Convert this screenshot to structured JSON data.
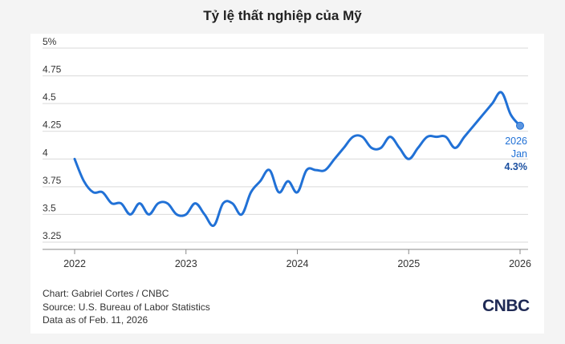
{
  "chart_data": {
    "type": "line",
    "title": "Tỷ lệ thất nghiệp của Mỹ",
    "xlabel": "",
    "ylabel": "",
    "xlim": [
      2022,
      2026
    ],
    "ylim": [
      3.25,
      5
    ],
    "x_ticks": [
      "2022",
      "2023",
      "2024",
      "2025",
      "2026"
    ],
    "y_ticks": [
      "3.25",
      "3.5",
      "3.75",
      "4",
      "4.25",
      "4.5",
      "4.75",
      "5%"
    ],
    "grid": true,
    "series": [
      {
        "color": "#2171d6",
        "dates": [
          "2022-01",
          "2022-02",
          "2022-03",
          "2022-04",
          "2022-05",
          "2022-06",
          "2022-07",
          "2022-08",
          "2022-09",
          "2022-10",
          "2022-11",
          "2022-12",
          "2023-01",
          "2023-02",
          "2023-03",
          "2023-04",
          "2023-05",
          "2023-06",
          "2023-07",
          "2023-08",
          "2023-09",
          "2023-10",
          "2023-11",
          "2023-12",
          "2024-01",
          "2024-02",
          "2024-03",
          "2024-04",
          "2024-05",
          "2024-06",
          "2024-07",
          "2024-08",
          "2024-09",
          "2024-10",
          "2024-11",
          "2024-12",
          "2025-01",
          "2025-02",
          "2025-03",
          "2025-04",
          "2025-05",
          "2025-06",
          "2025-07",
          "2025-08",
          "2025-09",
          "2025-10",
          "2025-11",
          "2025-12",
          "2026-01"
        ],
        "values": [
          4.0,
          3.8,
          3.7,
          3.7,
          3.6,
          3.6,
          3.5,
          3.6,
          3.5,
          3.6,
          3.6,
          3.5,
          3.5,
          3.6,
          3.5,
          3.4,
          3.6,
          3.6,
          3.5,
          3.7,
          3.8,
          3.9,
          3.7,
          3.8,
          3.7,
          3.9,
          3.9,
          3.9,
          4.0,
          4.1,
          4.2,
          4.2,
          4.1,
          4.1,
          4.2,
          4.1,
          4.0,
          4.1,
          4.2,
          4.2,
          4.2,
          4.1,
          4.2,
          4.3,
          4.4,
          4.5,
          4.6,
          4.4,
          4.3
        ]
      }
    ],
    "annotation": {
      "year": "2026",
      "month": "Jan",
      "value": "4.3%"
    }
  },
  "footer": {
    "credit": "Chart: Gabriel Cortes / CNBC",
    "source": "Source: U.S. Bureau of Labor Statistics",
    "asof": "Data as of Feb. 11, 2026"
  },
  "logo": {
    "text": "CNBC"
  },
  "colors": {
    "line": "#2171d6",
    "annotation_value": "#1a4fa0",
    "grid": "#d9d9d9"
  }
}
